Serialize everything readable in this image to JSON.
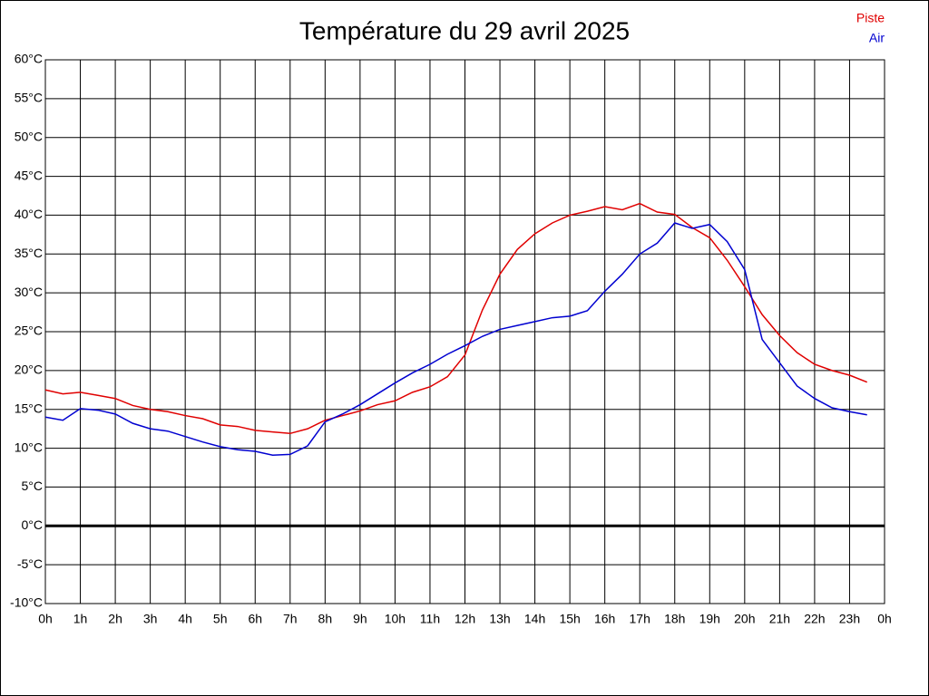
{
  "chart_data": {
    "type": "line",
    "title": "Température du 29 avril 2025",
    "x": [
      0,
      0.5,
      1,
      1.5,
      2,
      2.5,
      3,
      3.5,
      4,
      4.5,
      5,
      5.5,
      6,
      6.5,
      7,
      7.5,
      8,
      8.5,
      9,
      9.5,
      10,
      10.5,
      11,
      11.5,
      12,
      12.5,
      13,
      13.5,
      14,
      14.5,
      15,
      15.5,
      16,
      16.5,
      17,
      17.5,
      18,
      18.5,
      19,
      19.5,
      20,
      20.5,
      21,
      21.5,
      22,
      22.5,
      23,
      23.5
    ],
    "series": [
      {
        "name": "Piste",
        "color": "#e00000",
        "values": [
          17.5,
          17.0,
          17.2,
          16.8,
          16.4,
          15.5,
          15.0,
          14.7,
          14.2,
          13.8,
          13.0,
          12.8,
          12.3,
          12.1,
          11.9,
          12.5,
          13.6,
          14.2,
          14.8,
          15.6,
          16.1,
          17.2,
          17.9,
          19.2,
          22.0,
          27.8,
          32.4,
          35.6,
          37.6,
          39.0,
          40.0,
          40.5,
          41.1,
          40.7,
          41.5,
          40.4,
          40.1,
          38.4,
          37.1,
          34.2,
          30.8,
          27.2,
          24.5,
          22.3,
          20.8,
          20.0,
          19.4,
          18.5
        ]
      },
      {
        "name": "Air",
        "color": "#0000d0",
        "values": [
          14.0,
          13.6,
          15.1,
          14.9,
          14.4,
          13.2,
          12.5,
          12.2,
          11.5,
          10.8,
          10.2,
          9.8,
          9.6,
          9.1,
          9.2,
          10.3,
          13.4,
          14.4,
          15.6,
          17.0,
          18.4,
          19.7,
          20.8,
          22.1,
          23.2,
          24.4,
          25.3,
          25.8,
          26.3,
          26.8,
          27.0,
          27.7,
          30.2,
          32.4,
          35.0,
          36.4,
          39.0,
          38.3,
          38.8,
          36.6,
          33.0,
          24.0,
          21.0,
          18.0,
          16.4,
          15.2,
          14.7,
          14.3
        ]
      }
    ],
    "xlim": [
      0,
      24
    ],
    "xticks": [
      {
        "value": 0,
        "label": "0h"
      },
      {
        "value": 1,
        "label": "1h"
      },
      {
        "value": 2,
        "label": "2h"
      },
      {
        "value": 3,
        "label": "3h"
      },
      {
        "value": 4,
        "label": "4h"
      },
      {
        "value": 5,
        "label": "5h"
      },
      {
        "value": 6,
        "label": "6h"
      },
      {
        "value": 7,
        "label": "7h"
      },
      {
        "value": 8,
        "label": "8h"
      },
      {
        "value": 9,
        "label": "9h"
      },
      {
        "value": 10,
        "label": "10h"
      },
      {
        "value": 11,
        "label": "11h"
      },
      {
        "value": 12,
        "label": "12h"
      },
      {
        "value": 13,
        "label": "13h"
      },
      {
        "value": 14,
        "label": "14h"
      },
      {
        "value": 15,
        "label": "15h"
      },
      {
        "value": 16,
        "label": "16h"
      },
      {
        "value": 17,
        "label": "17h"
      },
      {
        "value": 18,
        "label": "18h"
      },
      {
        "value": 19,
        "label": "19h"
      },
      {
        "value": 20,
        "label": "20h"
      },
      {
        "value": 21,
        "label": "21h"
      },
      {
        "value": 22,
        "label": "22h"
      },
      {
        "value": 23,
        "label": "23h"
      },
      {
        "value": 24,
        "label": "0h"
      }
    ],
    "ylim": [
      -10,
      60
    ],
    "yticks": [
      {
        "value": -10,
        "label": "-10°C"
      },
      {
        "value": -5,
        "label": "-5°C"
      },
      {
        "value": 0,
        "label": "0°C"
      },
      {
        "value": 5,
        "label": "5°C"
      },
      {
        "value": 10,
        "label": "10°C"
      },
      {
        "value": 15,
        "label": "15°C"
      },
      {
        "value": 20,
        "label": "20°C"
      },
      {
        "value": 25,
        "label": "25°C"
      },
      {
        "value": 30,
        "label": "30°C"
      },
      {
        "value": 35,
        "label": "35°C"
      },
      {
        "value": 40,
        "label": "40°C"
      },
      {
        "value": 45,
        "label": "45°C"
      },
      {
        "value": 50,
        "label": "50°C"
      },
      {
        "value": 55,
        "label": "55°C"
      },
      {
        "value": 60,
        "label": "60°C"
      }
    ],
    "grid": true,
    "zero_line": true,
    "legend": "top-right"
  }
}
